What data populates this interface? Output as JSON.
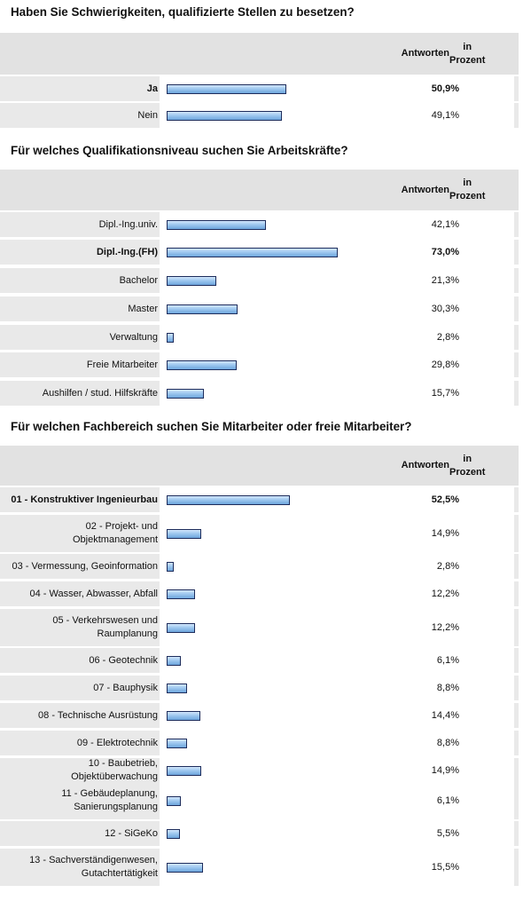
{
  "sections": [
    {
      "title": "Haben Sie Schwierigkeiten, qualifizierte Stellen zu besetzen?",
      "header": [
        "Antworten",
        "in Prozent"
      ],
      "rows": [
        {
          "label": "Ja",
          "value": 50.9,
          "display": "50,9%",
          "bold": true
        },
        {
          "label": "Nein",
          "value": 49.1,
          "display": "49,1%",
          "bold": false
        }
      ]
    },
    {
      "title": "Für welches Qualifikationsniveau suchen Sie Arbeitskräfte?",
      "header": [
        "Antworten",
        "in Prozent"
      ],
      "rows": [
        {
          "label": "Dipl.-Ing.univ.",
          "value": 42.1,
          "display": "42,1%",
          "bold": false
        },
        {
          "label": "Dipl.-Ing.(FH)",
          "value": 73.0,
          "display": "73,0%",
          "bold": true
        },
        {
          "label": "Bachelor",
          "value": 21.3,
          "display": "21,3%",
          "bold": false
        },
        {
          "label": "Master",
          "value": 30.3,
          "display": "30,3%",
          "bold": false
        },
        {
          "label": "Verwaltung",
          "value": 2.8,
          "display": "2,8%",
          "bold": false
        },
        {
          "label": "Freie Mitarbeiter",
          "value": 29.8,
          "display": "29,8%",
          "bold": false
        },
        {
          "label": "Aushilfen / stud. Hilfskräfte",
          "value": 15.7,
          "display": "15,7%",
          "bold": false
        }
      ]
    },
    {
      "title": "Für welchen Fachbereich suchen Sie Mitarbeiter oder freie Mitarbeiter?",
      "header": [
        "Antworten",
        "in Prozent"
      ],
      "rows": [
        {
          "label": "01 - Konstruktiver Ingenieurbau",
          "value": 52.5,
          "display": "52,5%",
          "bold": true
        },
        {
          "label": "02 - Projekt- und\nObjektmanagement",
          "value": 14.9,
          "display": "14,9%",
          "bold": false
        },
        {
          "label": "03 - Vermessung, Geoinformation",
          "value": 2.8,
          "display": "2,8%",
          "bold": false
        },
        {
          "label": "04 - Wasser, Abwasser, Abfall",
          "value": 12.2,
          "display": "12,2%",
          "bold": false
        },
        {
          "label": "05 - Verkehrswesen und\nRaumplanung",
          "value": 12.2,
          "display": "12,2%",
          "bold": false
        },
        {
          "label": "06 - Geotechnik",
          "value": 6.1,
          "display": "6,1%",
          "bold": false
        },
        {
          "label": "07 - Bauphysik",
          "value": 8.8,
          "display": "8,8%",
          "bold": false
        },
        {
          "label": "08 - Technische Ausrüstung",
          "value": 14.4,
          "display": "14,4%",
          "bold": false
        },
        {
          "label": "09 - Elektrotechnik",
          "value": 8.8,
          "display": "8,8%",
          "bold": false
        },
        {
          "label": "10 - Baubetrieb, Objektüberwachung",
          "value": 14.9,
          "display": "14,9%",
          "bold": false
        },
        {
          "label": "11 - Gebäudeplanung,\nSanierungsplanung",
          "value": 6.1,
          "display": "6,1%",
          "bold": false
        },
        {
          "label": "12 - SiGeKo",
          "value": 5.5,
          "display": "5,5%",
          "bold": false
        },
        {
          "label": "13 - Sachverständigenwesen,\nGutachtertätigkeit",
          "value": 15.5,
          "display": "15,5%",
          "bold": false
        }
      ]
    }
  ],
  "chart_data": [
    {
      "type": "bar",
      "title": "Haben Sie Schwierigkeiten, qualifizierte Stellen zu besetzen?",
      "categories": [
        "Ja",
        "Nein"
      ],
      "values": [
        50.9,
        49.1
      ],
      "ylabel": "Antworten in Prozent",
      "orientation": "horizontal"
    },
    {
      "type": "bar",
      "title": "Für welches Qualifikationsniveau suchen Sie Arbeitskräfte?",
      "categories": [
        "Dipl.-Ing.univ.",
        "Dipl.-Ing.(FH)",
        "Bachelor",
        "Master",
        "Verwaltung",
        "Freie Mitarbeiter",
        "Aushilfen / stud. Hilfskräfte"
      ],
      "values": [
        42.1,
        73.0,
        21.3,
        30.3,
        2.8,
        29.8,
        15.7
      ],
      "ylabel": "Antworten in Prozent",
      "orientation": "horizontal"
    },
    {
      "type": "bar",
      "title": "Für welchen Fachbereich suchen Sie Mitarbeiter oder freie Mitarbeiter?",
      "categories": [
        "01 - Konstruktiver Ingenieurbau",
        "02 - Projekt- und Objektmanagement",
        "03 - Vermessung, Geoinformation",
        "04 - Wasser, Abwasser, Abfall",
        "05 - Verkehrswesen und Raumplanung",
        "06 - Geotechnik",
        "07 - Bauphysik",
        "08 - Technische Ausrüstung",
        "09 - Elektrotechnik",
        "10 - Baubetrieb, Objektüberwachung",
        "11 - Gebäudeplanung, Sanierungsplanung",
        "12 - SiGeKo",
        "13 - Sachverständigenwesen, Gutachtertätigkeit"
      ],
      "values": [
        52.5,
        14.9,
        2.8,
        12.2,
        12.2,
        6.1,
        8.8,
        14.4,
        8.8,
        14.9,
        6.1,
        5.5,
        15.5
      ],
      "ylabel": "Antworten in Prozent",
      "orientation": "horizontal"
    }
  ],
  "colors": {
    "bar_top": "#d2e6fb",
    "bar_bottom": "#6ea5dc",
    "bar_border": "#1e2d5c",
    "row_label_bg": "#e9e9e9",
    "header_bg": "#e2e2e2"
  }
}
